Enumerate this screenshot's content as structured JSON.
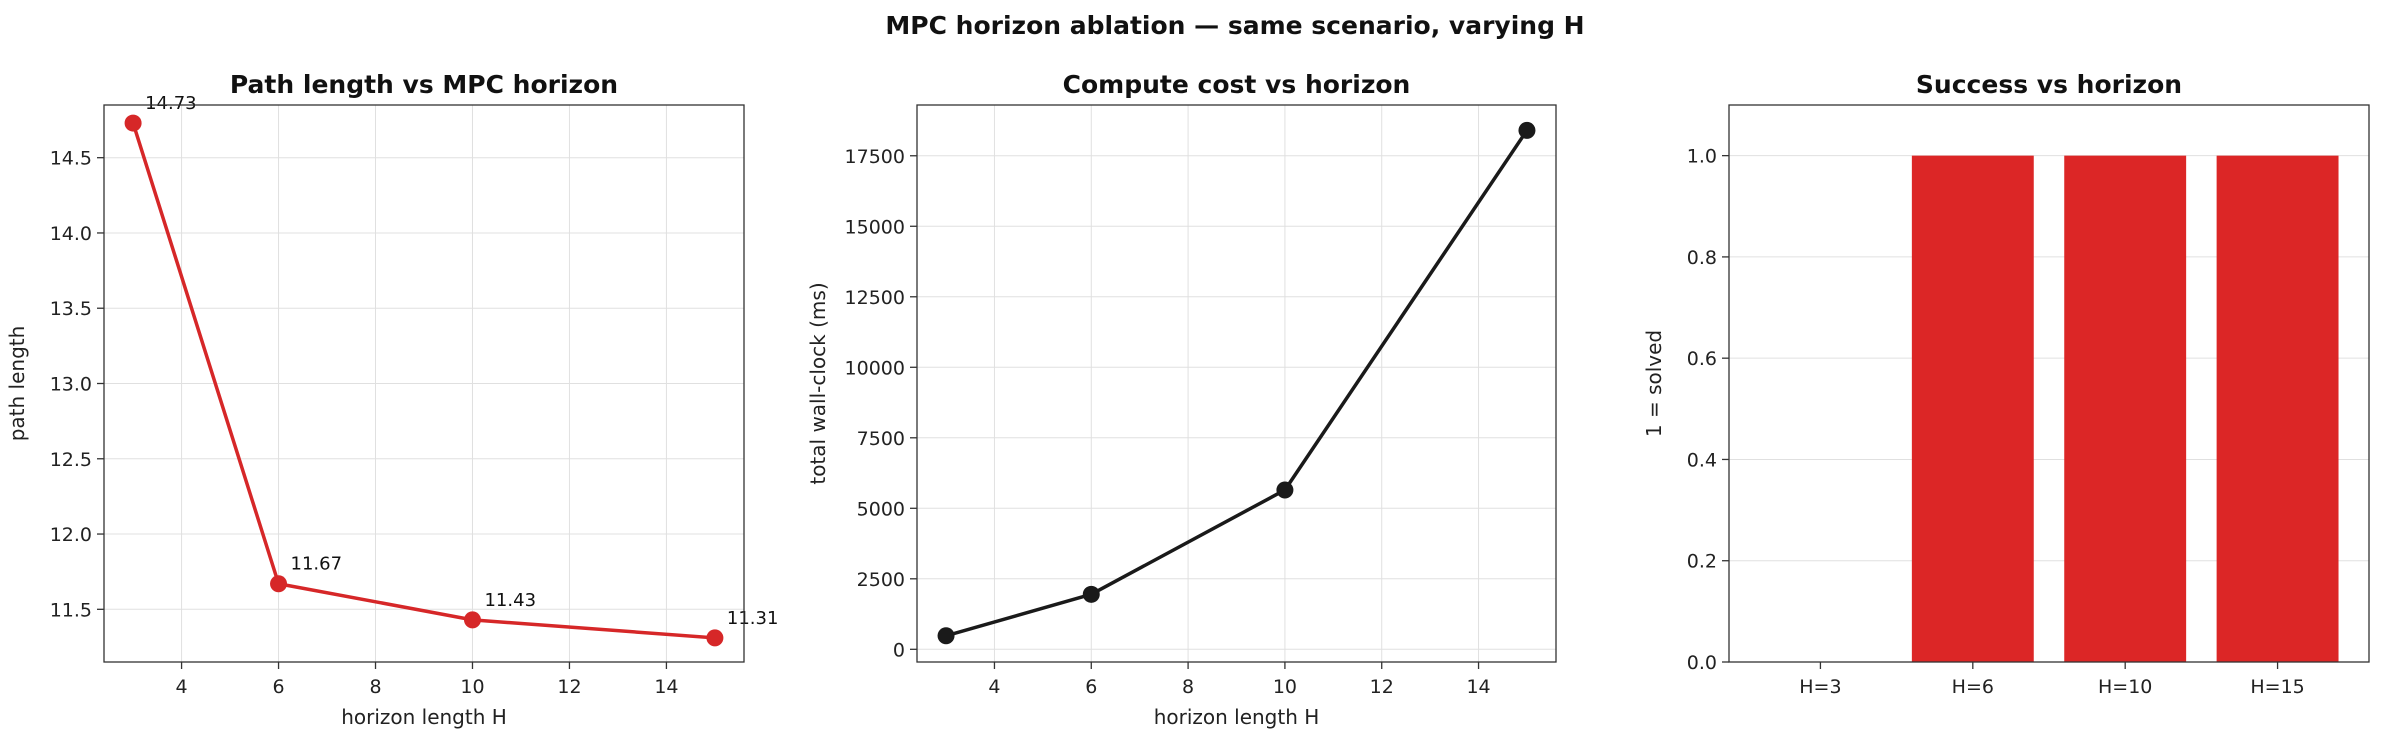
{
  "suptitle": "MPC horizon ablation — same scenario, varying H",
  "colors": {
    "red": "#d62728",
    "bar": "#dc2626",
    "black": "#1a1a1a"
  },
  "chart_data": [
    {
      "type": "line",
      "title": "Path length vs MPC horizon",
      "xlabel": "horizon length H",
      "ylabel": "path length",
      "x": [
        3,
        6,
        10,
        15
      ],
      "y": [
        14.73,
        11.67,
        11.43,
        11.31
      ],
      "data_labels": [
        "14.73",
        "11.67",
        "11.43",
        "11.31"
      ],
      "xlim": [
        2.4,
        15.6
      ],
      "ylim": [
        11.15,
        14.85
      ],
      "xticks": [
        4,
        6,
        8,
        10,
        12,
        14
      ],
      "xtick_labels": [
        "4",
        "6",
        "8",
        "10",
        "12",
        "14"
      ],
      "yticks": [
        11.5,
        12.0,
        12.5,
        13.0,
        13.5,
        14.0,
        14.5
      ],
      "ytick_labels": [
        "11.5",
        "12.0",
        "12.5",
        "13.0",
        "13.5",
        "14.0",
        "14.5"
      ],
      "grid": true,
      "color": "#d62728"
    },
    {
      "type": "line",
      "title": "Compute cost vs horizon",
      "xlabel": "horizon length H",
      "ylabel": "total wall-clock (ms)",
      "x": [
        3,
        6,
        10,
        15
      ],
      "y": [
        480,
        1950,
        5650,
        18400
      ],
      "xlim": [
        2.4,
        15.6
      ],
      "ylim": [
        -450,
        19300
      ],
      "xticks": [
        4,
        6,
        8,
        10,
        12,
        14
      ],
      "xtick_labels": [
        "4",
        "6",
        "8",
        "10",
        "12",
        "14"
      ],
      "yticks": [
        0,
        2500,
        5000,
        7500,
        10000,
        12500,
        15000,
        17500
      ],
      "ytick_labels": [
        "0",
        "2500",
        "5000",
        "7500",
        "10000",
        "12500",
        "15000",
        "17500"
      ],
      "grid": true,
      "color": "#1a1a1a"
    },
    {
      "type": "bar",
      "title": "Success vs horizon",
      "xlabel": "",
      "ylabel": "1 = solved",
      "categories": [
        "H=3",
        "H=6",
        "H=10",
        "H=15"
      ],
      "values": [
        0,
        1,
        1,
        1
      ],
      "ylim": [
        0,
        1.1
      ],
      "yticks": [
        0.0,
        0.2,
        0.4,
        0.6,
        0.8,
        1.0
      ],
      "ytick_labels": [
        "0.0",
        "0.2",
        "0.4",
        "0.6",
        "0.8",
        "1.0"
      ],
      "grid": true,
      "color": "#dc2626"
    }
  ]
}
